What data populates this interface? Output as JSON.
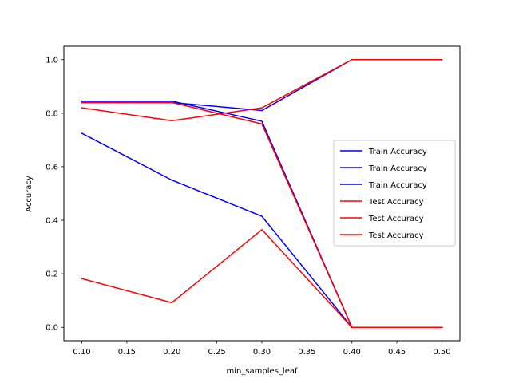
{
  "chart_data": {
    "type": "line",
    "title": "",
    "xlabel": "min_samples_leaf",
    "ylabel": "Accuracy",
    "xlim": [
      0.08,
      0.52
    ],
    "ylim": [
      -0.05,
      1.05
    ],
    "x": [
      0.1,
      0.2,
      0.3,
      0.4,
      0.5
    ],
    "x_ticks": [
      "0.10",
      "0.15",
      "0.20",
      "0.25",
      "0.30",
      "0.35",
      "0.40",
      "0.45",
      "0.50"
    ],
    "x_tick_values": [
      0.1,
      0.15,
      0.2,
      0.25,
      0.3,
      0.35,
      0.4,
      0.45,
      0.5
    ],
    "y_ticks": [
      "0.0",
      "0.2",
      "0.4",
      "0.6",
      "0.8",
      "1.0"
    ],
    "y_tick_values": [
      0.0,
      0.2,
      0.4,
      0.6,
      0.8,
      1.0
    ],
    "grid": false,
    "legend_position": "center-right",
    "series": [
      {
        "name": "Train Accuracy",
        "color": "#0000ff",
        "values": [
          0.84,
          0.84,
          0.81,
          1.0,
          1.0
        ]
      },
      {
        "name": "Train Accuracy",
        "color": "#0000ff",
        "values": [
          0.845,
          0.845,
          0.77,
          0.0,
          0.0
        ]
      },
      {
        "name": "Train Accuracy",
        "color": "#0000ff",
        "values": [
          0.725,
          0.55,
          0.415,
          0.0,
          0.0
        ]
      },
      {
        "name": "Test Accuracy",
        "color": "#ff0000",
        "values": [
          0.82,
          0.772,
          0.82,
          1.0,
          1.0
        ]
      },
      {
        "name": "Test Accuracy",
        "color": "#ff0000",
        "values": [
          0.84,
          0.84,
          0.76,
          0.0,
          0.0
        ]
      },
      {
        "name": "Test Accuracy",
        "color": "#ff0000",
        "values": [
          0.182,
          0.092,
          0.365,
          0.0,
          0.0
        ]
      }
    ]
  }
}
